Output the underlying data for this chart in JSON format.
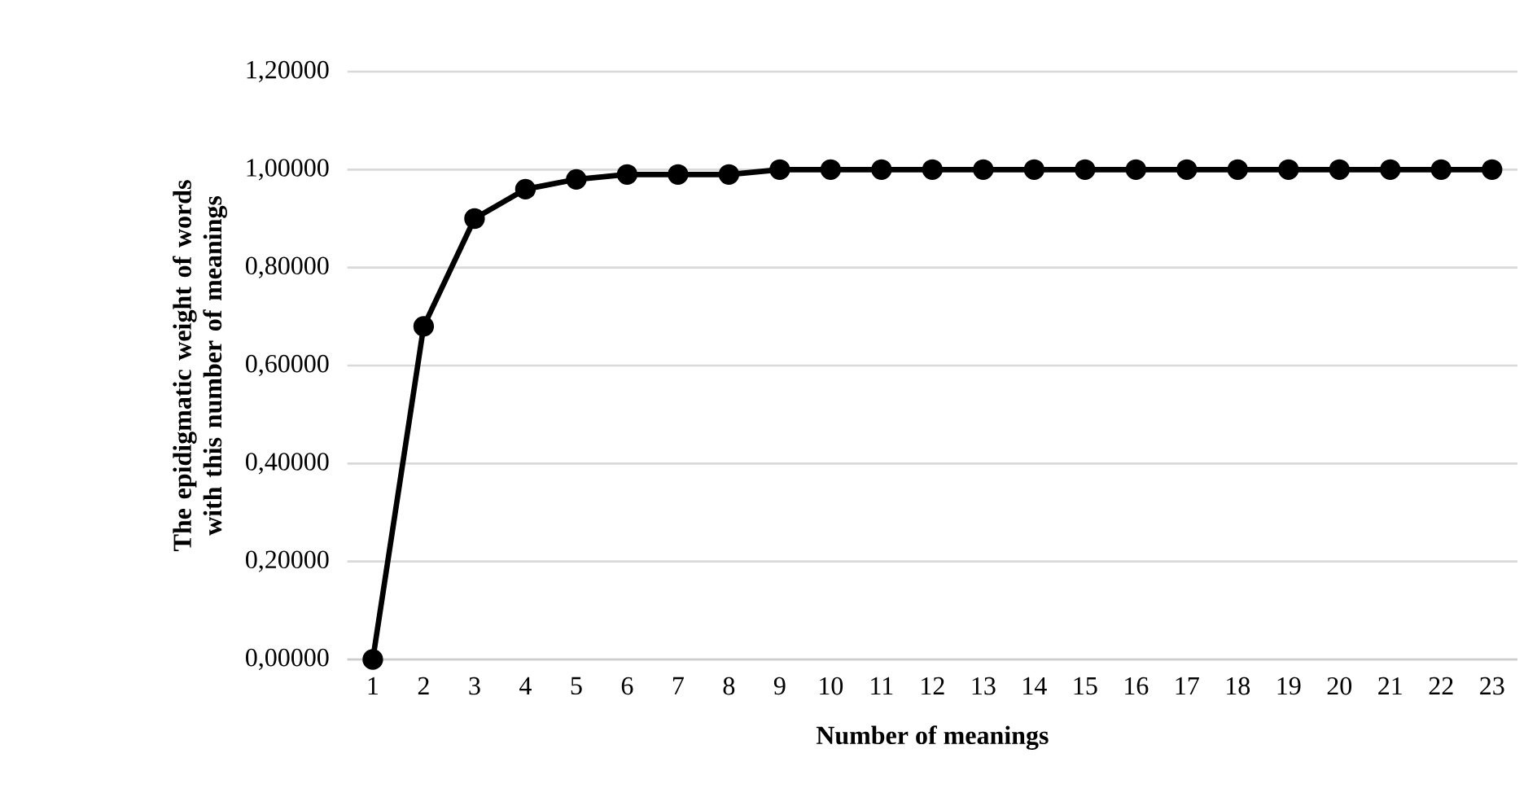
{
  "chart_data": {
    "type": "line",
    "xlabel": "Number of meanings",
    "ylabel": "The epidigmatic weight of words with this number of meanings",
    "categories": [
      "1",
      "2",
      "3",
      "4",
      "5",
      "6",
      "7",
      "8",
      "9",
      "10",
      "11",
      "12",
      "13",
      "14",
      "15",
      "16",
      "17",
      "18",
      "19",
      "20",
      "21",
      "22",
      "23"
    ],
    "values": [
      0,
      0.68,
      0.9,
      0.96,
      0.98,
      0.99,
      0.99,
      0.99,
      1.0,
      1.0,
      1.0,
      1.0,
      1.0,
      1.0,
      1.0,
      1.0,
      1.0,
      1.0,
      1.0,
      1.0,
      1.0,
      1.0,
      1.0
    ],
    "color": "#000000",
    "ylim": [
      0,
      1.2
    ],
    "yticks": [
      {
        "value": 0,
        "label": "0,00000"
      },
      {
        "value": 0.2,
        "label": "0,20000"
      },
      {
        "value": 0.4,
        "label": "0,40000"
      },
      {
        "value": 0.6,
        "label": "0,60000"
      },
      {
        "value": 0.8,
        "label": "0,80000"
      },
      {
        "value": 1.0,
        "label": "1,00000"
      },
      {
        "value": 1.2,
        "label": "1,20000"
      }
    ],
    "grid": "y",
    "marker": "circle",
    "line_style": "solid"
  }
}
